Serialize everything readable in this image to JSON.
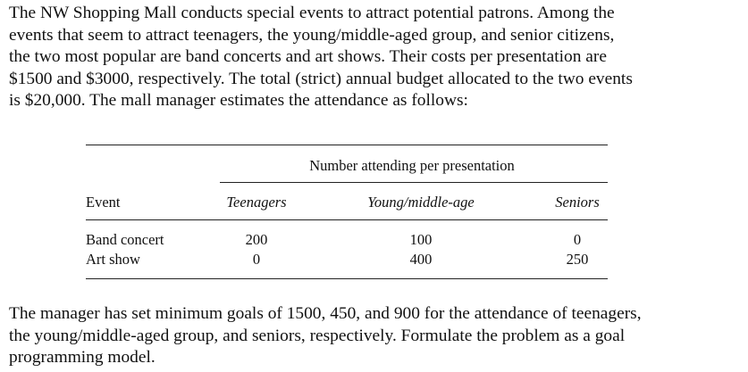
{
  "intro_lines": [
    "The NW Shopping Mall conducts special events to attract potential patrons. Among the",
    "events that seem to attract teenagers, the young/middle-aged group, and senior citizens,",
    "the two most popular are band concerts and art shows. Their costs per presentation are",
    "$1500 and $3000, respectively. The total (strict) annual budget allocated to the two events",
    "is $20,000. The mall manager estimates the attendance as follows:"
  ],
  "table": {
    "group_header": "Number attending per presentation",
    "headers": {
      "event": "Event",
      "teen": "Teenagers",
      "young": "Young/middle-age",
      "senior": "Seniors"
    },
    "rows": [
      {
        "event": "Band concert",
        "teen": "200",
        "young": "100",
        "senior": "0"
      },
      {
        "event": "Art show",
        "teen": "0",
        "young": "400",
        "senior": "250"
      }
    ]
  },
  "closing_lines": [
    "The manager has set minimum goals of 1500, 450, and 900 for the attendance of teenagers,",
    "the young/middle-aged group, and seniors, respectively. Formulate the problem as a goal",
    "programming model."
  ]
}
